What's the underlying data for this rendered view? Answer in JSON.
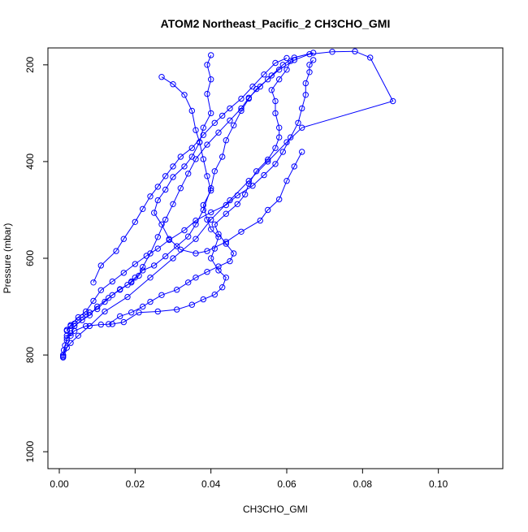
{
  "chart_data": {
    "type": "line",
    "title": "ATOM2 Northeast_Pacific_2 CH3CHO_GMI",
    "xlabel": "CH3CHO_GMI",
    "ylabel": "Pressure (mbar)",
    "xlim": [
      -0.003,
      0.117
    ],
    "ylim": [
      1035,
      165
    ],
    "y_inverted": true,
    "x_ticks": [
      0.0,
      0.02,
      0.04,
      0.06,
      0.08,
      0.1
    ],
    "x_tick_labels": [
      "0.00",
      "0.02",
      "0.04",
      "0.06",
      "0.08",
      "0.10"
    ],
    "y_ticks": [
      200,
      400,
      600,
      800,
      1000
    ],
    "y_tick_labels": [
      "200",
      "400",
      "600",
      "800",
      "1000"
    ],
    "grid": false,
    "legend": "none",
    "marker": "open-circle",
    "colors": {
      "series": "#0000ff",
      "frame": "#000000",
      "background": "#ffffff"
    },
    "series": [
      {
        "values": [
          [
            0.001,
            805
          ],
          [
            0.001,
            800
          ],
          [
            0.0012,
            790
          ],
          [
            0.0015,
            780
          ],
          [
            0.002,
            770
          ],
          [
            0.002,
            760
          ],
          [
            0.003,
            755
          ],
          [
            0.002,
            748
          ],
          [
            0.003,
            740
          ],
          [
            0.004,
            735
          ],
          [
            0.005,
            728
          ],
          [
            0.006,
            722
          ],
          [
            0.007,
            716
          ],
          [
            0.008,
            712
          ],
          [
            0.01,
            705
          ],
          [
            0.012,
            690
          ],
          [
            0.014,
            676
          ],
          [
            0.016,
            665
          ],
          [
            0.018,
            655
          ],
          [
            0.019,
            648
          ],
          [
            0.02,
            640
          ],
          [
            0.022,
            625
          ],
          [
            0.025,
            615
          ],
          [
            0.028,
            596
          ],
          [
            0.031,
            575
          ],
          [
            0.034,
            555
          ],
          [
            0.036,
            530
          ],
          [
            0.038,
            500
          ],
          [
            0.04,
            455
          ],
          [
            0.041,
            420
          ],
          [
            0.043,
            390
          ],
          [
            0.044,
            356
          ],
          [
            0.046,
            325
          ],
          [
            0.048,
            295
          ],
          [
            0.05,
            270
          ],
          [
            0.052,
            250
          ],
          [
            0.055,
            230
          ],
          [
            0.058,
            210
          ],
          [
            0.062,
            190
          ],
          [
            0.066,
            178
          ],
          [
            0.072,
            173
          ],
          [
            0.078,
            172
          ],
          [
            0.082,
            185
          ],
          [
            0.088,
            275
          ],
          [
            0.064,
            330
          ],
          [
            0.06,
            360
          ],
          [
            0.055,
            400
          ],
          [
            0.05,
            440
          ],
          [
            0.045,
            480
          ],
          [
            0.04,
            520
          ],
          [
            0.036,
            560
          ],
          [
            0.03,
            600
          ],
          [
            0.024,
            640
          ],
          [
            0.018,
            680
          ],
          [
            0.012,
            710
          ],
          [
            0.008,
            740
          ],
          [
            0.005,
            760
          ],
          [
            0.003,
            775
          ],
          [
            0.002,
            785
          ],
          [
            0.001,
            800
          ]
        ]
      },
      {
        "values": [
          [
            0.001,
            803
          ],
          [
            0.002,
            765
          ],
          [
            0.004,
            750
          ],
          [
            0.007,
            740
          ],
          [
            0.011,
            737
          ],
          [
            0.014,
            736
          ],
          [
            0.017,
            732
          ],
          [
            0.021,
            712
          ],
          [
            0.026,
            710
          ],
          [
            0.031,
            706
          ],
          [
            0.035,
            696
          ],
          [
            0.038,
            685
          ],
          [
            0.041,
            675
          ],
          [
            0.043,
            660
          ],
          [
            0.044,
            640
          ],
          [
            0.042,
            625
          ],
          [
            0.04,
            600
          ],
          [
            0.041,
            580
          ],
          [
            0.042,
            556
          ],
          [
            0.04,
            540
          ],
          [
            0.039,
            520
          ],
          [
            0.038,
            490
          ],
          [
            0.04,
            460
          ],
          [
            0.039,
            430
          ],
          [
            0.038,
            395
          ],
          [
            0.037,
            360
          ],
          [
            0.038,
            330
          ],
          [
            0.04,
            300
          ],
          [
            0.039,
            260
          ],
          [
            0.04,
            230
          ],
          [
            0.039,
            200
          ],
          [
            0.04,
            180
          ]
        ]
      },
      {
        "values": [
          [
            0.003,
            760
          ],
          [
            0.004,
            740
          ],
          [
            0.006,
            728
          ],
          [
            0.008,
            718
          ],
          [
            0.01,
            700
          ],
          [
            0.013,
            682
          ],
          [
            0.016,
            664
          ],
          [
            0.019,
            650
          ],
          [
            0.021,
            636
          ],
          [
            0.022,
            618
          ],
          [
            0.024,
            590
          ],
          [
            0.026,
            556
          ],
          [
            0.028,
            520
          ],
          [
            0.03,
            488
          ],
          [
            0.032,
            455
          ],
          [
            0.034,
            425
          ],
          [
            0.036,
            395
          ],
          [
            0.039,
            365
          ],
          [
            0.042,
            340
          ],
          [
            0.045,
            315
          ],
          [
            0.048,
            290
          ],
          [
            0.05,
            268
          ],
          [
            0.053,
            245
          ],
          [
            0.056,
            222
          ],
          [
            0.059,
            200
          ],
          [
            0.062,
            185
          ],
          [
            0.067,
            175
          ]
        ]
      },
      {
        "values": [
          [
            0.002,
            750
          ],
          [
            0.003,
            738
          ],
          [
            0.005,
            722
          ],
          [
            0.007,
            710
          ],
          [
            0.009,
            688
          ],
          [
            0.011,
            666
          ],
          [
            0.014,
            648
          ],
          [
            0.017,
            630
          ],
          [
            0.02,
            612
          ],
          [
            0.023,
            595
          ],
          [
            0.026,
            580
          ],
          [
            0.029,
            562
          ],
          [
            0.033,
            542
          ],
          [
            0.036,
            522
          ],
          [
            0.04,
            505
          ],
          [
            0.044,
            490
          ],
          [
            0.047,
            470
          ],
          [
            0.051,
            450
          ],
          [
            0.054,
            428
          ],
          [
            0.057,
            405
          ],
          [
            0.059,
            380
          ],
          [
            0.061,
            350
          ],
          [
            0.063,
            320
          ],
          [
            0.064,
            290
          ],
          [
            0.065,
            262
          ],
          [
            0.065,
            238
          ],
          [
            0.066,
            215
          ],
          [
            0.066,
            200
          ],
          [
            0.067,
            190
          ]
        ]
      },
      {
        "values": [
          [
            0.013,
            736
          ],
          [
            0.016,
            720
          ],
          [
            0.019,
            712
          ],
          [
            0.022,
            700
          ],
          [
            0.024,
            690
          ],
          [
            0.027,
            676
          ],
          [
            0.031,
            665
          ],
          [
            0.034,
            650
          ],
          [
            0.036,
            640
          ],
          [
            0.039,
            628
          ],
          [
            0.042,
            617
          ],
          [
            0.045,
            606
          ],
          [
            0.046,
            590
          ],
          [
            0.044,
            570
          ],
          [
            0.042,
            550
          ],
          [
            0.041,
            530
          ],
          [
            0.044,
            508
          ],
          [
            0.047,
            488
          ],
          [
            0.049,
            468
          ],
          [
            0.05,
            446
          ],
          [
            0.052,
            420
          ],
          [
            0.055,
            396
          ],
          [
            0.057,
            372
          ],
          [
            0.058,
            350
          ],
          [
            0.058,
            330
          ],
          [
            0.057,
            300
          ],
          [
            0.057,
            275
          ],
          [
            0.056,
            252
          ],
          [
            0.058,
            230
          ],
          [
            0.06,
            210
          ],
          [
            0.061,
            192
          ]
        ]
      },
      {
        "values": [
          [
            0.009,
            650
          ],
          [
            0.011,
            615
          ],
          [
            0.015,
            585
          ],
          [
            0.017,
            560
          ],
          [
            0.02,
            525
          ],
          [
            0.022,
            498
          ],
          [
            0.024,
            472
          ],
          [
            0.026,
            452
          ],
          [
            0.028,
            430
          ],
          [
            0.03,
            410
          ],
          [
            0.032,
            390
          ],
          [
            0.035,
            372
          ],
          [
            0.038,
            345
          ],
          [
            0.041,
            320
          ],
          [
            0.043,
            305
          ],
          [
            0.045,
            290
          ],
          [
            0.048,
            270
          ],
          [
            0.051,
            245
          ],
          [
            0.054,
            220
          ],
          [
            0.057,
            196
          ],
          [
            0.06,
            186
          ]
        ]
      },
      {
        "values": [
          [
            0.027,
            225
          ],
          [
            0.03,
            240
          ],
          [
            0.033,
            262
          ],
          [
            0.035,
            295
          ],
          [
            0.036,
            335
          ],
          [
            0.037,
            360
          ],
          [
            0.035,
            390
          ],
          [
            0.033,
            410
          ],
          [
            0.03,
            432
          ],
          [
            0.028,
            458
          ],
          [
            0.026,
            480
          ],
          [
            0.025,
            506
          ],
          [
            0.027,
            530
          ],
          [
            0.029,
            560
          ],
          [
            0.032,
            582
          ],
          [
            0.036,
            590
          ],
          [
            0.039,
            585
          ],
          [
            0.044,
            566
          ],
          [
            0.048,
            545
          ],
          [
            0.053,
            522
          ],
          [
            0.055,
            500
          ],
          [
            0.058,
            478
          ],
          [
            0.06,
            440
          ],
          [
            0.062,
            410
          ],
          [
            0.064,
            380
          ]
        ]
      }
    ]
  }
}
